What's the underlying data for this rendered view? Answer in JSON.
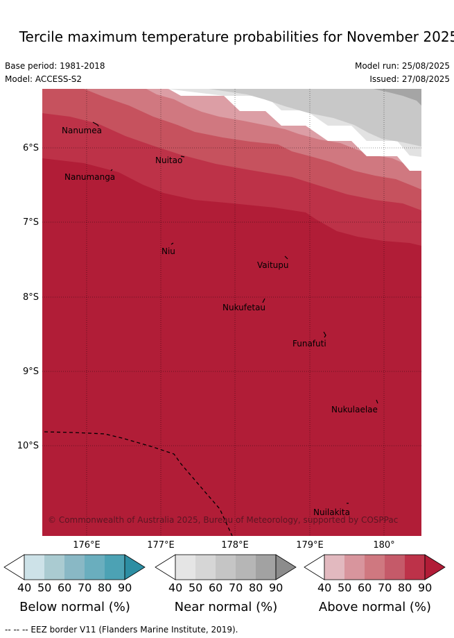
{
  "title": "Tercile maximum temperature probabilities for November 2025",
  "meta": {
    "base_period": "Base period: 1981-2018",
    "model": "Model: ACCESS-S2",
    "model_run": "Model run: 25/08/2025",
    "issued": "Issued: 27/08/2025"
  },
  "map": {
    "lat_labels": [
      "6°S",
      "7°S",
      "8°S",
      "9°S",
      "10°S"
    ],
    "lon_labels": [
      "176°E",
      "177°E",
      "178°E",
      "179°E",
      "180°"
    ],
    "places": [
      "Nanumea",
      "Nuitao",
      "Nanumanga",
      "Niu",
      "Vaitupu",
      "Nukufetau",
      "Funafuti",
      "Nukulaelae",
      "Nuilakita"
    ],
    "copyright": "© Commonwealth of Australia 2025, Bureau of Meteorology, supported by COSPPac",
    "colors": {
      "above_90": "#b11d37",
      "above_80": "#bd3248",
      "above_70": "#c6525e",
      "above_60": "#d07880",
      "above_50": "#dc9ea5",
      "near_40": "#e2e2e2",
      "near_60": "#c8c8c8",
      "near_80": "#a5a5a5"
    }
  },
  "colorbars": {
    "ticks": [
      "40",
      "50",
      "60",
      "70",
      "80",
      "90"
    ],
    "below": {
      "title": "Below normal (%)",
      "colors": [
        "#cde2e8",
        "#aacbd1",
        "#89b8c5",
        "#6aaebe",
        "#4ca2b4",
        "#2d8ea3"
      ]
    },
    "near": {
      "title": "Near normal (%)",
      "colors": [
        "#e5e5e5",
        "#d6d6d6",
        "#c5c5c5",
        "#b6b6b6",
        "#a2a2a2",
        "#8c8c8c"
      ]
    },
    "above": {
      "title": "Above normal (%)",
      "colors": [
        "#e2b9bf",
        "#d8959d",
        "#cf7880",
        "#c55a69",
        "#bd3249",
        "#b11c37"
      ]
    }
  },
  "footer": "--  --  -- EEZ border V11 (Flanders Marine Institute, 2019)."
}
